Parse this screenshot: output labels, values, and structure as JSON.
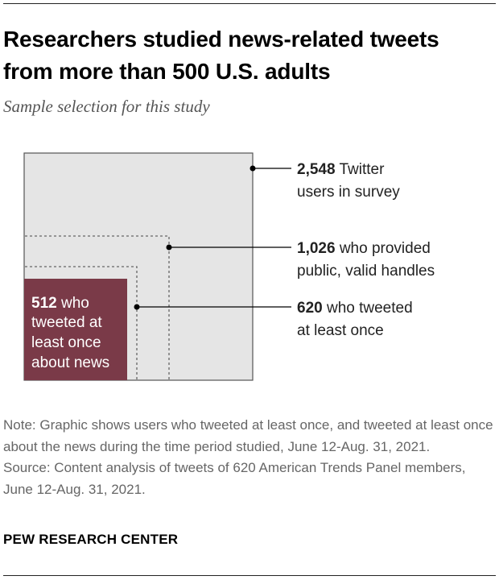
{
  "title": "Researchers studied news-related tweets from more than 500 U.S. adults",
  "subtitle": "Sample selection for this study",
  "colors": {
    "outer_fill": "#e5e5e5",
    "inner_fill": "#7a3a48",
    "border": "#555555",
    "note_text": "#666666"
  },
  "diagram": {
    "levels": [
      {
        "number": "2,548",
        "line1": "Twitter",
        "line2": "users in survey"
      },
      {
        "number": "1,026",
        "line1": "who provided",
        "line2": "public, valid handles"
      },
      {
        "number": "620",
        "line1": "who tweeted",
        "line2": "at least once"
      }
    ],
    "inner": {
      "number": "512",
      "line1": "who",
      "line2": "tweeted at",
      "line3": "least once",
      "line4": "about news"
    }
  },
  "note": "Note: Graphic shows users who tweeted at least once, and tweeted at least once about the news during the time period studied, June 12-Aug. 31, 2021.",
  "source": "Source: Content analysis of tweets of 620 American Trends Panel members, June 12-Aug. 31, 2021.",
  "brand": "PEW RESEARCH CENTER"
}
